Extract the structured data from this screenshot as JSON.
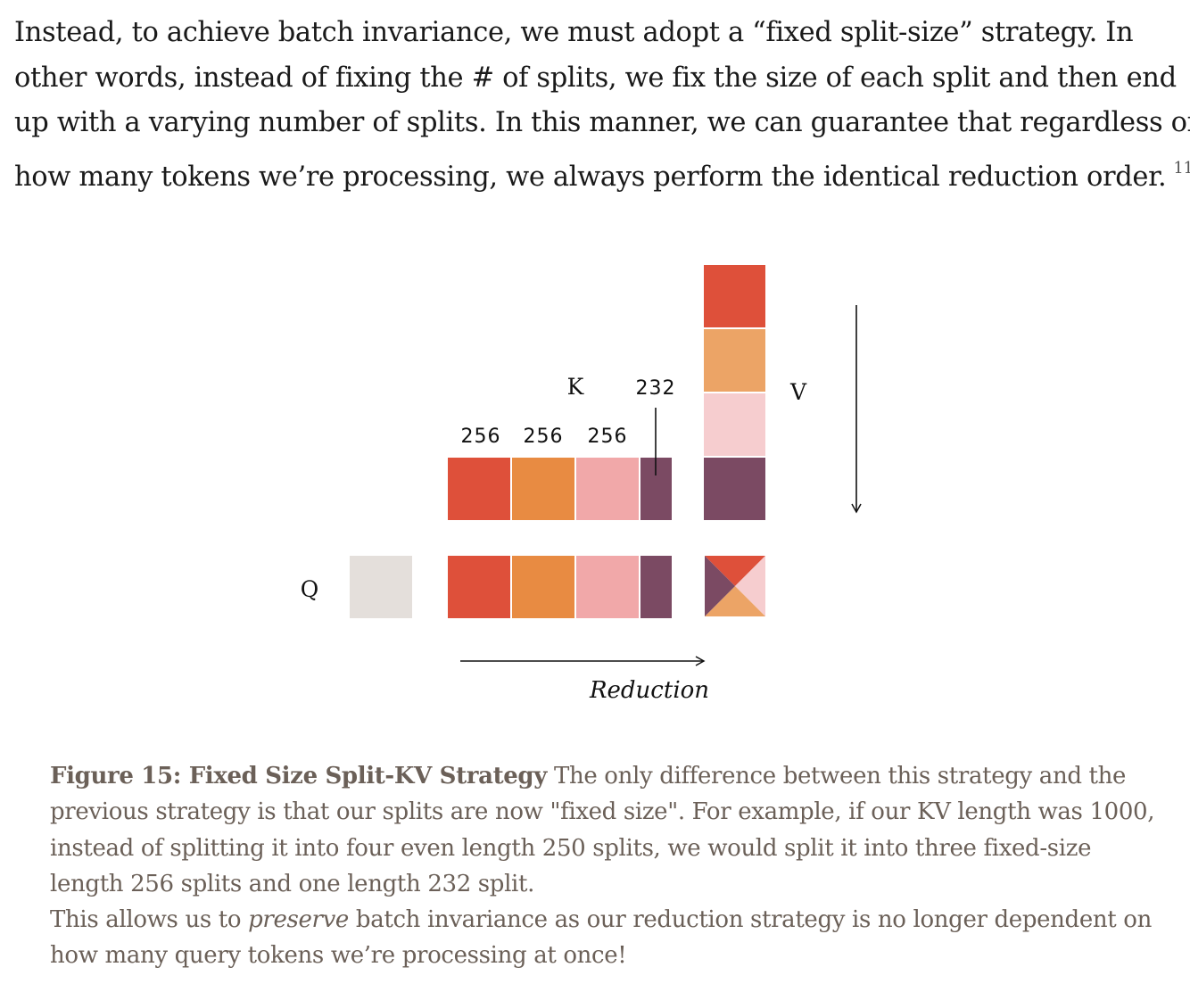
{
  "paragraph": {
    "lines": [
      "Instead, to achieve batch invariance, we must adopt a “fixed split-size” strategy. In",
      "other words, instead of fixing the # of splits, we fix the size of each split and then end",
      "up with a varying number of splits. In this manner, we can guarantee that regardless of",
      "how many tokens we’re processing, we always perform the identical reduction order."
    ],
    "footnote": "11"
  },
  "figure": {
    "k_label": "K",
    "v_label": "V",
    "q_label": "Q",
    "split_sizes": [
      "256",
      "256",
      "256",
      "232"
    ],
    "reduction_label": "Reduction",
    "colors": {
      "red": "#de503a",
      "orange": "#e88b42",
      "pink": "#f1a8a9",
      "purple": "#7b4a63",
      "light_orange": "#eca466",
      "light_pink": "#f6cdcf",
      "gray": "#e4dfdb"
    }
  },
  "caption": {
    "title": "Figure 15: Fixed Size Split-KV Strategy",
    "line1_rest": " The only difference between this strategy and the",
    "lines": [
      "previous strategy is that our splits are now \"fixed size\". For example, if our KV length was 1000,",
      "instead of splitting it into four even length 250 splits, we would split it into three fixed-size",
      "length 256 splits and one length 232 split."
    ],
    "last_pre": "This allows us to ",
    "last_em": "preserve",
    "last_post": " batch invariance as our reduction strategy is no longer dependent on",
    "final_line": "how many query tokens we’re processing at once!"
  }
}
